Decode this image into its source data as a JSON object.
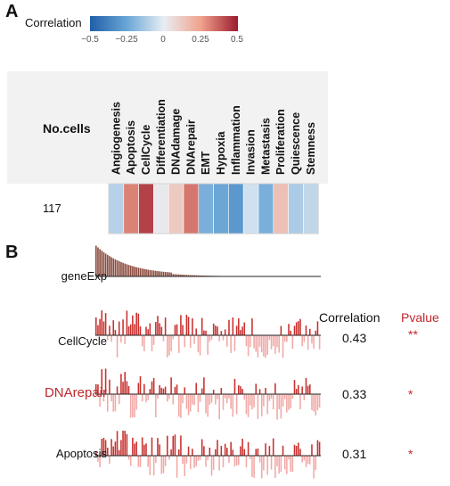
{
  "panels": {
    "a": "A",
    "b": "B"
  },
  "legend": {
    "title": "Correlation",
    "ticks": [
      "−0.5",
      "−0.25",
      "0",
      "0.25",
      "0.5"
    ],
    "range": [
      -0.5,
      0.5
    ],
    "colors": [
      "#1f5fa8",
      "#6aa6d6",
      "#e8eef4",
      "#f0a28c",
      "#9b1b2e"
    ]
  },
  "heatmap": {
    "row_header": "No.cells",
    "row_value": "117",
    "states": [
      "Angiogenesis",
      "Apoptosis",
      "CellCycle",
      "Differentiation",
      "DNAdamage",
      "DNArepair",
      "EMT",
      "Hypoxia",
      "Inflammation",
      "Invasion",
      "Metastasis",
      "Proliferation",
      "Quiescence",
      "Stemness"
    ],
    "values": [
      -0.1,
      0.31,
      0.43,
      0.02,
      0.12,
      0.33,
      -0.22,
      -0.25,
      -0.3,
      -0.05,
      -0.22,
      0.15,
      -0.12,
      -0.08
    ]
  },
  "tracks": {
    "geneExp_label": "geneExp",
    "col_correlation": "Correlation",
    "col_pvalue": "Pvalue",
    "rows": [
      {
        "label": "CellCycle",
        "correlation": "0.43",
        "pvalue": "**",
        "highlight": false
      },
      {
        "label": "DNArepair",
        "correlation": "0.33",
        "pvalue": "*",
        "highlight": true
      },
      {
        "label": "Apoptosis",
        "correlation": "0.31",
        "pvalue": "*",
        "highlight": false
      }
    ]
  },
  "chart_data": [
    {
      "type": "heatmap",
      "title": "",
      "legend_title": "Correlation",
      "range": [
        -0.5,
        0.5
      ],
      "rows": [
        "117"
      ],
      "columns": [
        "Angiogenesis",
        "Apoptosis",
        "CellCycle",
        "Differentiation",
        "DNAdamage",
        "DNArepair",
        "EMT",
        "Hypoxia",
        "Inflammation",
        "Invasion",
        "Metastasis",
        "Proliferation",
        "Quiescence",
        "Stemness"
      ],
      "values": [
        [
          -0.1,
          0.31,
          0.43,
          0.02,
          0.12,
          0.33,
          -0.22,
          -0.25,
          -0.3,
          -0.05,
          -0.22,
          0.15,
          -0.12,
          -0.08
        ]
      ]
    },
    {
      "type": "bar",
      "series": [
        {
          "name": "CellCycle",
          "correlation": 0.43,
          "pvalue": "**"
        },
        {
          "name": "DNArepair",
          "correlation": 0.33,
          "pvalue": "*"
        },
        {
          "name": "Apoptosis",
          "correlation": 0.31,
          "pvalue": "*"
        }
      ]
    }
  ]
}
